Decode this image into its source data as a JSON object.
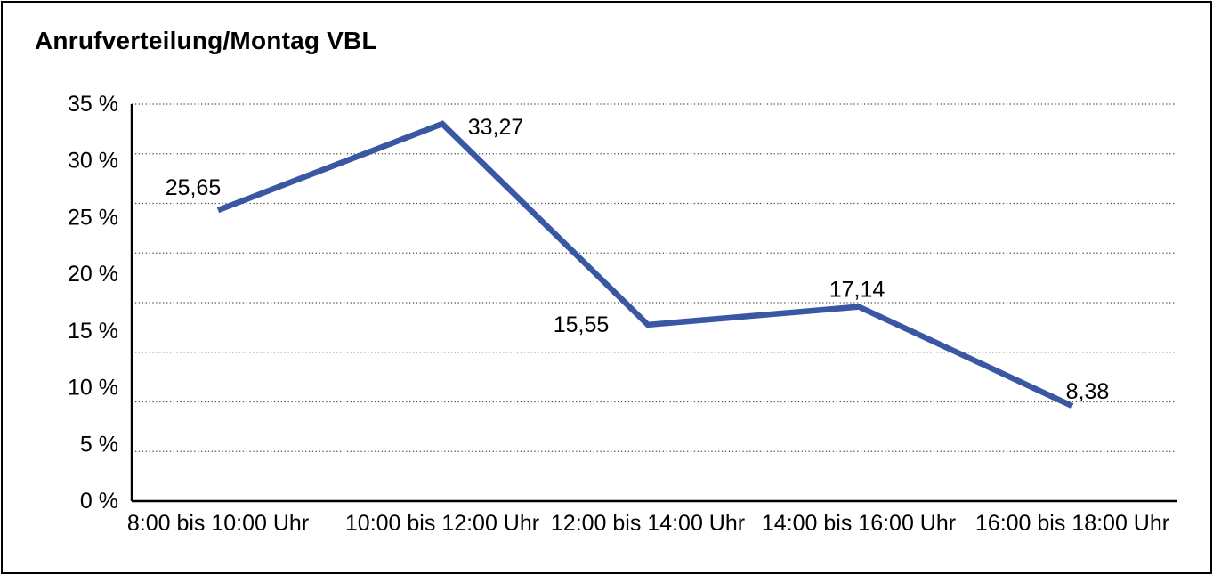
{
  "chart": {
    "title": "Anrufverteilung/Montag VBL"
  },
  "chart_data": {
    "type": "line",
    "title": "Anrufverteilung/Montag VBL",
    "categories": [
      "8:00 bis 10:00 Uhr",
      "10:00 bis 12:00 Uhr",
      "12:00 bis 14:00 Uhr",
      "14:00 bis 16:00 Uhr",
      "16:00 bis 18:00 Uhr"
    ],
    "series": [
      {
        "values": [
          25.65,
          33.27,
          15.55,
          17.14,
          8.38
        ]
      }
    ],
    "data_labels": [
      "25,65",
      "33,27",
      "15,55",
      "17,14",
      "8,38"
    ],
    "y_ticks": [
      "35 %",
      "30 %",
      "25 %",
      "20 %",
      "15 %",
      "10 %",
      "5 %",
      "0 %"
    ],
    "ylim": [
      0,
      35
    ],
    "xlabel": "",
    "ylabel": "",
    "grid": "horizontal-dotted",
    "gridline_divisions": 8,
    "legend": "none",
    "line_color": "#3A57A3",
    "text_color": "#000000"
  }
}
